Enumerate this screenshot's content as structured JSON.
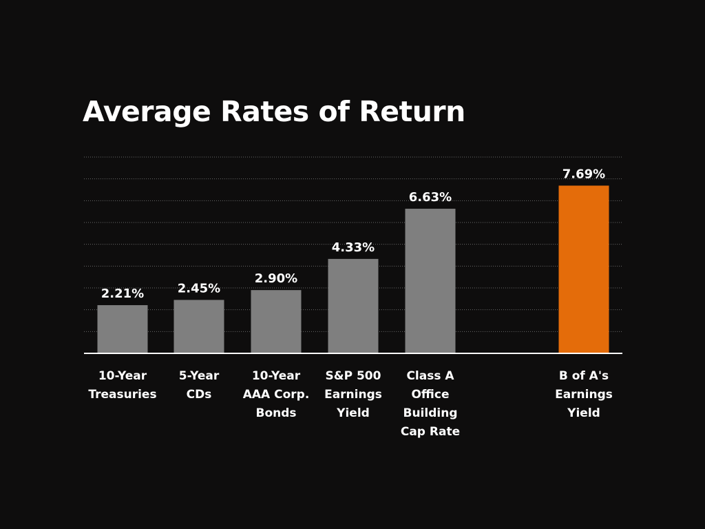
{
  "chart_data": {
    "type": "bar",
    "title": "Average Rates of Return",
    "xlabel": "",
    "ylabel": "",
    "categories": [
      "10-Year\nTreasuries",
      "5-Year\nCDs",
      "10-Year\nAAA Corp.\nBonds",
      "S&P 500\nEarnings\nYield",
      "Class A\nOffice\nBuilding\nCap Rate",
      "B of A's\nEarnings\nYield"
    ],
    "values": [
      2.21,
      2.45,
      2.9,
      4.33,
      6.63,
      7.69
    ],
    "value_labels": [
      "2.21%",
      "2.45%",
      "2.90%",
      "4.33%",
      "6.63%",
      "7.69%"
    ],
    "ylim": [
      0,
      9
    ],
    "grid": true,
    "legend": "none",
    "colors": {
      "default_bar": "#7f7f7f",
      "highlight_bar": "#e46c0a",
      "background": "#0e0d0d",
      "text": "#ffffff",
      "gridline": "#6a6a6a",
      "baseline": "#ffffff"
    },
    "highlight_index": 5
  }
}
